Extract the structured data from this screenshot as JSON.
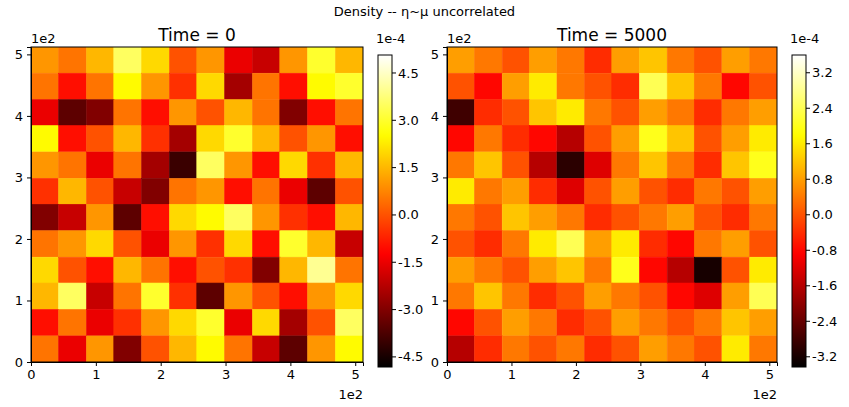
{
  "title": "Density -- η~μ uncorrelated",
  "chart_data": [
    {
      "type": "heatmap",
      "title": "Time = 0",
      "xlim": [
        0,
        5.12
      ],
      "ylim": [
        0,
        5.12
      ],
      "xticks": [
        0,
        1,
        2,
        3,
        4,
        5
      ],
      "yticks": [
        0,
        1,
        2,
        3,
        4,
        5
      ],
      "x_offset_text": "1e2",
      "y_offset_text": "1e2",
      "x": [
        0.21,
        0.64,
        1.07,
        1.49,
        1.92,
        2.35,
        2.77,
        3.2,
        3.63,
        4.05,
        4.48,
        4.91
      ],
      "y": [
        4.91,
        4.48,
        4.05,
        3.63,
        3.2,
        2.77,
        2.35,
        1.92,
        1.49,
        1.07,
        0.64,
        0.21
      ],
      "values": [
        [
          1.0,
          0.5,
          1.5,
          3.5,
          2.0,
          0.0,
          1.0,
          -1.5,
          -2.0,
          1.0,
          3.0,
          1.5
        ],
        [
          0.5,
          -1.0,
          0.5,
          2.5,
          1.0,
          -0.5,
          2.0,
          -2.5,
          0.5,
          -1.0,
          2.5,
          3.0
        ],
        [
          -1.5,
          -3.5,
          -3.0,
          0.5,
          -1.0,
          1.0,
          0.0,
          1.5,
          0.5,
          -3.0,
          -1.0,
          0.5
        ],
        [
          2.5,
          -1.0,
          0.0,
          1.5,
          -0.5,
          -2.5,
          2.0,
          3.0,
          1.5,
          0.0,
          1.0,
          -1.0
        ],
        [
          1.0,
          0.5,
          -1.5,
          0.5,
          -2.5,
          -4.0,
          3.5,
          1.0,
          -1.0,
          2.0,
          -0.5,
          1.5
        ],
        [
          -0.5,
          1.5,
          0.0,
          -2.0,
          -3.0,
          0.5,
          1.0,
          -1.0,
          0.5,
          -1.5,
          -3.5,
          0.0
        ],
        [
          -3.0,
          -2.0,
          1.0,
          -3.5,
          -1.0,
          2.0,
          2.5,
          3.5,
          1.0,
          -0.5,
          -1.0,
          1.5
        ],
        [
          0.5,
          1.0,
          2.0,
          0.0,
          -1.5,
          1.0,
          -0.5,
          2.0,
          -1.0,
          3.0,
          1.5,
          -2.0
        ],
        [
          2.0,
          0.0,
          -1.0,
          1.5,
          0.5,
          -1.0,
          0.0,
          -0.5,
          -3.0,
          1.5,
          4.0,
          0.5
        ],
        [
          1.5,
          3.5,
          -2.0,
          0.5,
          3.0,
          -0.5,
          -3.5,
          1.0,
          0.0,
          -1.0,
          1.0,
          2.0
        ],
        [
          -1.0,
          0.5,
          -1.5,
          -0.5,
          1.0,
          2.0,
          3.0,
          -1.5,
          2.0,
          -2.5,
          0.0,
          3.5
        ],
        [
          0.5,
          -1.5,
          1.0,
          -3.0,
          0.0,
          1.5,
          2.5,
          0.5,
          -2.0,
          -3.5,
          1.0,
          2.5
        ]
      ],
      "colorbar": {
        "range": [
          -4.82,
          5.07
        ],
        "offset_text": "1e-4",
        "ticks": [
          4.5,
          {
            "value": 3,
            "label": "3.0"
          },
          1.5,
          {
            "value": 0,
            "label": "0.0"
          },
          -1.5,
          {
            "value": -3,
            "label": "-3.0"
          },
          -4.5
        ]
      }
    },
    {
      "type": "heatmap",
      "title": "Time = 5000",
      "xlim": [
        0,
        5.12
      ],
      "ylim": [
        0,
        5.12
      ],
      "xticks": [
        0,
        1,
        2,
        3,
        4,
        5
      ],
      "yticks": [
        0,
        1,
        2,
        3,
        4,
        5
      ],
      "x_offset_text": "1e2",
      "y_offset_text": "1e2",
      "x": [
        0.21,
        0.64,
        1.07,
        1.49,
        1.92,
        2.35,
        2.77,
        3.2,
        3.63,
        4.05,
        4.48,
        4.91
      ],
      "y": [
        4.91,
        4.48,
        4.05,
        3.63,
        3.2,
        2.77,
        2.35,
        1.92,
        1.49,
        1.07,
        0.64,
        0.21
      ],
      "values": [
        [
          0.8,
          0.4,
          0.0,
          0.8,
          0.4,
          -0.4,
          0.8,
          1.2,
          0.4,
          0.0,
          0.8,
          0.4
        ],
        [
          0.0,
          -0.8,
          0.8,
          1.6,
          0.4,
          0.0,
          -0.4,
          2.4,
          1.2,
          0.4,
          -0.8,
          0.0
        ],
        [
          -2.8,
          -0.4,
          0.0,
          1.2,
          1.6,
          0.4,
          0.0,
          0.8,
          0.4,
          -0.4,
          0.4,
          0.8
        ],
        [
          -0.8,
          0.4,
          -0.4,
          -0.8,
          -1.6,
          0.0,
          0.8,
          2.0,
          1.2,
          0.0,
          0.8,
          1.6
        ],
        [
          0.4,
          1.2,
          0.0,
          -1.6,
          -3.0,
          -1.2,
          0.4,
          1.2,
          0.4,
          -0.4,
          1.2,
          2.0
        ],
        [
          1.6,
          0.4,
          0.8,
          -0.4,
          -1.2,
          0.0,
          0.8,
          0.0,
          -0.4,
          0.4,
          0.0,
          0.8
        ],
        [
          0.4,
          0.0,
          1.2,
          0.8,
          0.4,
          -0.4,
          0.0,
          0.4,
          0.8,
          0.0,
          -0.4,
          0.4
        ],
        [
          0.0,
          -0.4,
          0.4,
          1.6,
          2.4,
          0.8,
          1.6,
          -0.4,
          -0.8,
          0.4,
          0.8,
          0.0
        ],
        [
          0.8,
          0.4,
          0.0,
          0.8,
          1.2,
          0.4,
          2.0,
          -0.8,
          -1.6,
          -3.2,
          0.0,
          1.6
        ],
        [
          0.4,
          1.2,
          0.4,
          -0.4,
          0.0,
          0.8,
          0.4,
          0.0,
          -0.8,
          -1.2,
          0.8,
          2.4
        ],
        [
          -0.8,
          0.0,
          0.8,
          0.4,
          -0.4,
          0.0,
          0.8,
          0.4,
          0.0,
          0.4,
          1.2,
          0.8
        ],
        [
          -1.6,
          -0.4,
          0.4,
          0.0,
          0.4,
          -0.4,
          0.0,
          0.8,
          0.4,
          0.0,
          1.6,
          0.4
        ]
      ],
      "colorbar": {
        "range": [
          -3.43,
          3.6
        ],
        "offset_text": "1e-4",
        "ticks": [
          3.2,
          2.4,
          1.6,
          0.8,
          {
            "value": 0,
            "label": "0.0"
          },
          -0.8,
          -1.6,
          -2.4,
          -3.2
        ]
      }
    }
  ]
}
